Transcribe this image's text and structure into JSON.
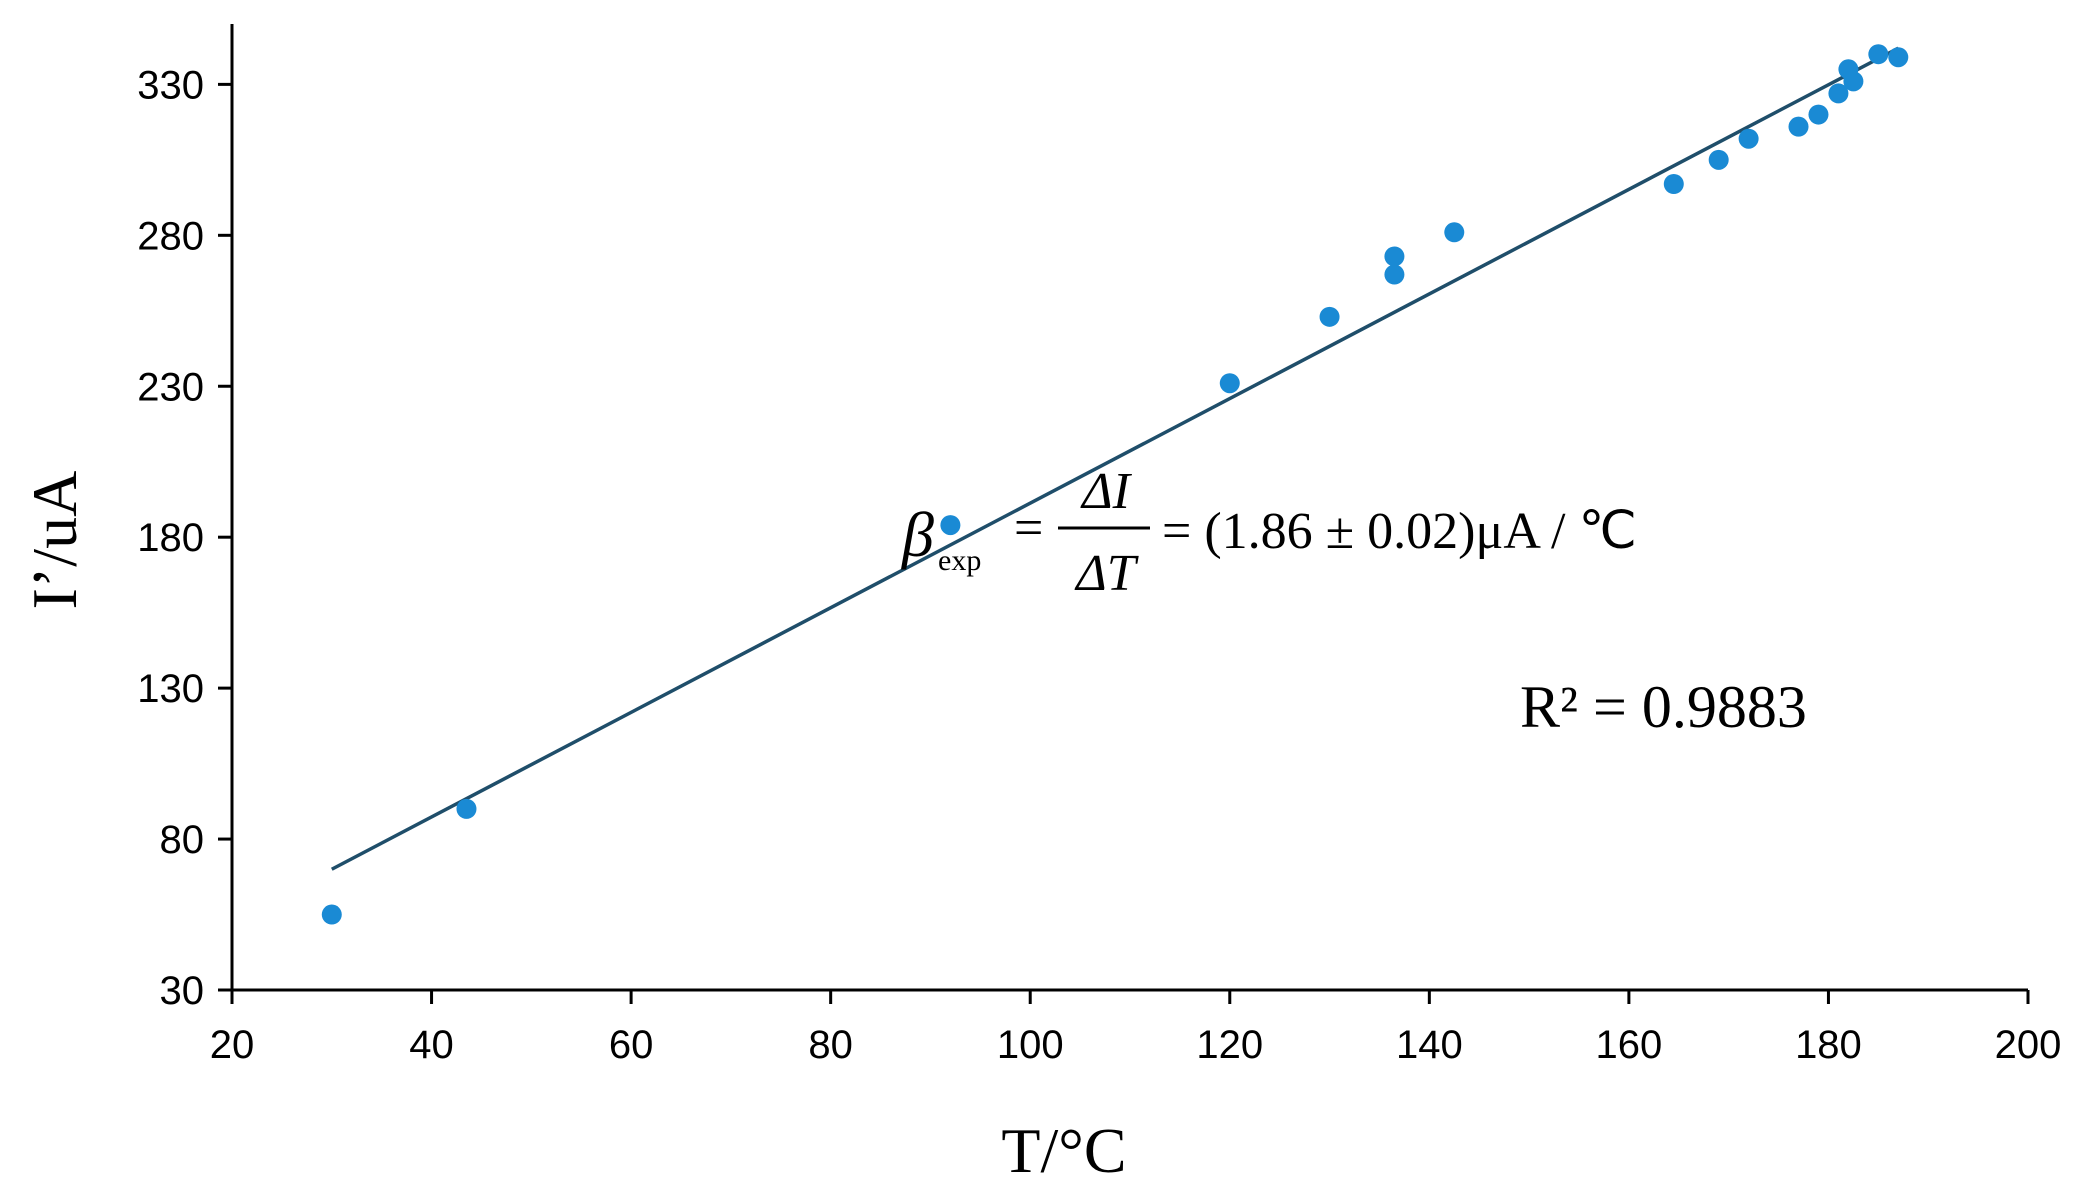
{
  "chart_data": {
    "type": "scatter",
    "xlabel": "T/°C",
    "ylabel": "I’/uA",
    "xlim": [
      20,
      200
    ],
    "ylim": [
      30,
      350
    ],
    "x_ticks": [
      20,
      40,
      60,
      80,
      100,
      120,
      140,
      160,
      180,
      200
    ],
    "y_ticks": [
      30,
      80,
      130,
      180,
      230,
      280,
      330
    ],
    "series": [
      {
        "color": "#1a8ad4",
        "points": [
          {
            "x": 30,
            "y": 55
          },
          {
            "x": 43.5,
            "y": 90
          },
          {
            "x": 92,
            "y": 184
          },
          {
            "x": 120,
            "y": 231
          },
          {
            "x": 130,
            "y": 253
          },
          {
            "x": 136.5,
            "y": 273
          },
          {
            "x": 136.5,
            "y": 267
          },
          {
            "x": 142.5,
            "y": 281
          },
          {
            "x": 164.5,
            "y": 297
          },
          {
            "x": 169,
            "y": 305
          },
          {
            "x": 172,
            "y": 312
          },
          {
            "x": 177,
            "y": 316
          },
          {
            "x": 179,
            "y": 320
          },
          {
            "x": 181,
            "y": 327
          },
          {
            "x": 182,
            "y": 335
          },
          {
            "x": 182.5,
            "y": 331
          },
          {
            "x": 185,
            "y": 340
          },
          {
            "x": 187,
            "y": 339
          }
        ]
      }
    ],
    "trendline": {
      "color": "#1f4e6a",
      "x": [
        30,
        187
      ],
      "y": [
        70,
        342
      ]
    },
    "annotations": {
      "beta": {
        "symbol": "β",
        "subscript": "exp",
        "numerator": "ΔI",
        "denominator": "ΔT",
        "value": "= (1.86 ± 0.02)μA / ℃"
      },
      "r2": "R² = 0.9883"
    }
  }
}
